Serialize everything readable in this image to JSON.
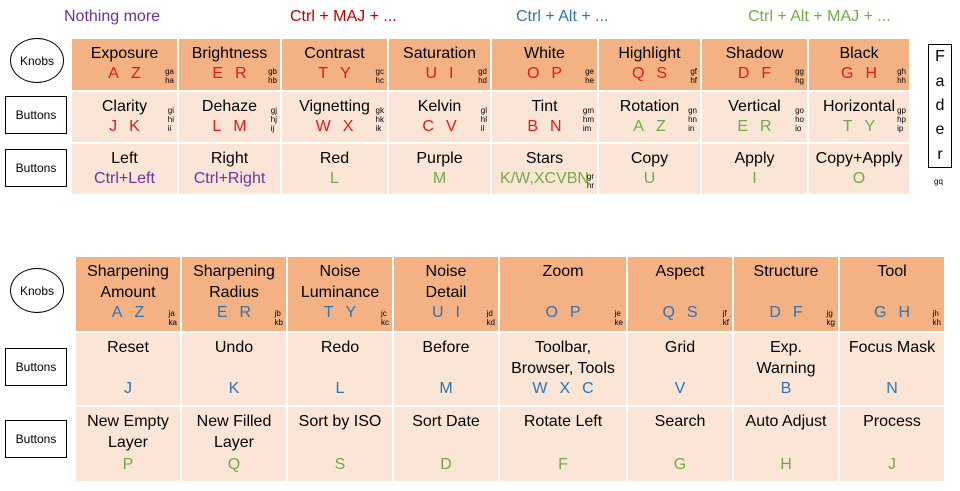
{
  "legend": {
    "nothing": "Nothing more",
    "ctrl_maj": "Ctrl + MAJ + ...",
    "ctrl_alt": "Ctrl + Alt + ...",
    "ctrl_alt_maj": "Ctrl + Alt + MAJ + ..."
  },
  "labels": {
    "knobs": "Knobs",
    "buttons": "Buttons"
  },
  "colors": {
    "header": "#f4b183",
    "body": "#fbe5d6",
    "red": "#e01b1b",
    "blue": "#2e75b6",
    "green": "#70ad47",
    "purple": "#7030a0"
  },
  "fader": {
    "letters": [
      "F",
      "a",
      "d",
      "e",
      "r"
    ],
    "code": "gq"
  },
  "top": {
    "knobs": [
      {
        "title": "Exposure",
        "keys": [
          "A",
          "Z"
        ],
        "codes": [
          "ga",
          "ha"
        ]
      },
      {
        "title": "Brightness",
        "keys": [
          "E",
          "R"
        ],
        "codes": [
          "gb",
          "hb"
        ]
      },
      {
        "title": "Contrast",
        "keys": [
          "T",
          "Y"
        ],
        "codes": [
          "gc",
          "hc"
        ]
      },
      {
        "title": "Saturation",
        "keys": [
          "U",
          "I"
        ],
        "codes": [
          "gd",
          "hd"
        ]
      },
      {
        "title": "White",
        "keys": [
          "O",
          "P"
        ],
        "codes": [
          "ge",
          "he"
        ]
      },
      {
        "title": "Highlight",
        "keys": [
          "Q",
          "S"
        ],
        "codes": [
          "gf",
          "hf"
        ]
      },
      {
        "title": "Shadow",
        "keys": [
          "D",
          "F"
        ],
        "codes": [
          "gg",
          "hg"
        ]
      },
      {
        "title": "Black",
        "keys": [
          "G",
          "H"
        ],
        "codes": [
          "gh",
          "hh"
        ]
      }
    ],
    "buttons1": [
      {
        "title": "Clarity",
        "keys": [
          "J",
          "K"
        ],
        "codes": [
          "gi",
          "hi",
          "ii"
        ]
      },
      {
        "title": "Dehaze",
        "keys": [
          "L",
          "M"
        ],
        "codes": [
          "gj",
          "hj",
          "ij"
        ]
      },
      {
        "title": "Vignetting",
        "keys": [
          "W",
          "X"
        ],
        "codes": [
          "gk",
          "hk",
          "ik"
        ]
      },
      {
        "title": "Kelvin",
        "keys": [
          "C",
          "V"
        ],
        "codes": [
          "gl",
          "hl",
          "il"
        ]
      },
      {
        "title": "Tint",
        "keys": [
          "B",
          "N"
        ],
        "codes": [
          "gm",
          "hm",
          "im"
        ]
      },
      {
        "title": "Rotation",
        "keys": [
          "A",
          "Z"
        ],
        "codes": [
          "gn",
          "hn",
          "in"
        ]
      },
      {
        "title": "Vertical",
        "keys": [
          "E",
          "R"
        ],
        "codes": [
          "go",
          "ho",
          "io"
        ]
      },
      {
        "title": "Horizontal",
        "keys": [
          "T",
          "Y"
        ],
        "codes": [
          "gp",
          "hp",
          "ip"
        ]
      }
    ],
    "buttons2": [
      {
        "title": "Left",
        "keys": [
          "Ctrl+Left"
        ],
        "codes": []
      },
      {
        "title": "Right",
        "keys": [
          "Ctrl+Right"
        ],
        "codes": []
      },
      {
        "title": "Red",
        "keys": [
          "L"
        ],
        "codes": []
      },
      {
        "title": "Purple",
        "keys": [
          "M"
        ],
        "codes": []
      },
      {
        "title": "Stars",
        "keys": [
          "K/W,XCVBN"
        ],
        "codes": [
          "gr",
          "hr"
        ]
      },
      {
        "title": "Copy",
        "keys": [
          "U"
        ],
        "codes": []
      },
      {
        "title": "Apply",
        "keys": [
          "I"
        ],
        "codes": []
      },
      {
        "title": "Copy+Apply",
        "keys": [
          "O"
        ],
        "codes": []
      }
    ]
  },
  "bottom": {
    "knobs": [
      {
        "title": "Sharpening\nAmount",
        "keys": [
          "A",
          "Z"
        ],
        "codes": [
          "ja",
          "ka"
        ]
      },
      {
        "title": "Sharpening\nRadius",
        "keys": [
          "E",
          "R"
        ],
        "codes": [
          "jb",
          "kb"
        ]
      },
      {
        "title": "Noise\nLuminance",
        "keys": [
          "T",
          "Y"
        ],
        "codes": [
          "jc",
          "kc"
        ]
      },
      {
        "title": "Noise\nDetail",
        "keys": [
          "U",
          "I"
        ],
        "codes": [
          "jd",
          "kd"
        ]
      },
      {
        "title": "Zoom",
        "keys": [
          "O",
          "P"
        ],
        "codes": [
          "je",
          "ke"
        ]
      },
      {
        "title": "Aspect",
        "keys": [
          "Q",
          "S"
        ],
        "codes": [
          "jf",
          "kf"
        ]
      },
      {
        "title": "Structure",
        "keys": [
          "D",
          "F"
        ],
        "codes": [
          "jg",
          "kg"
        ]
      },
      {
        "title": "Tool",
        "keys": [
          "G",
          "H"
        ],
        "codes": [
          "jh",
          "kh"
        ]
      }
    ],
    "buttons1": [
      {
        "title": "Reset",
        "keys": [
          "J"
        ]
      },
      {
        "title": "Undo",
        "keys": [
          "K"
        ]
      },
      {
        "title": "Redo",
        "keys": [
          "L"
        ]
      },
      {
        "title": "Before",
        "keys": [
          "M"
        ]
      },
      {
        "title": "Toolbar,\nBrowser, Tools",
        "keys": [
          "W",
          "X",
          "C"
        ]
      },
      {
        "title": "Grid",
        "keys": [
          "V"
        ]
      },
      {
        "title": "Exp.\nWarning",
        "keys": [
          "B"
        ]
      },
      {
        "title": "Focus Mask",
        "keys": [
          "N"
        ]
      }
    ],
    "buttons2": [
      {
        "title": "New Empty\nLayer",
        "keys": [
          "P"
        ]
      },
      {
        "title": "New Filled\nLayer",
        "keys": [
          "Q"
        ]
      },
      {
        "title": "Sort by ISO",
        "keys": [
          "S"
        ]
      },
      {
        "title": "Sort Date",
        "keys": [
          "D"
        ]
      },
      {
        "title": "Rotate Left",
        "keys": [
          "F"
        ]
      },
      {
        "title": "Search",
        "keys": [
          "G"
        ]
      },
      {
        "title": "Auto Adjust",
        "keys": [
          "H"
        ]
      },
      {
        "title": "Process",
        "keys": [
          "J"
        ]
      }
    ]
  }
}
